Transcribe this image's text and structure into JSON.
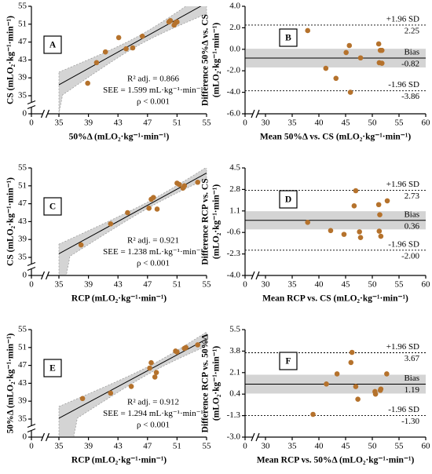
{
  "chart_data": [
    {
      "type": "scatter",
      "panel": "A",
      "xlabel": "50%Δ (mLO₂·kg⁻¹·min⁻¹)",
      "ylabel": [
        "CS (mLO₂·kg⁻¹·min⁻¹)"
      ],
      "x": [
        38.9,
        40.1,
        41.3,
        43.1,
        44.1,
        45.0,
        46.3,
        49.9,
        50.1,
        50.6,
        50.8,
        51.0
      ],
      "values": [
        37.8,
        42.4,
        44.8,
        48.0,
        45.5,
        45.7,
        48.3,
        51.5,
        51.8,
        50.8,
        51.3,
        51.5
      ],
      "color": "#b5722c",
      "xlim": [
        35,
        55
      ],
      "ylim": [
        35,
        55
      ],
      "x_break": true,
      "y_break": true,
      "xticks": [
        0,
        35,
        39,
        43,
        47,
        51,
        55
      ],
      "yticks": [
        0,
        35,
        39,
        43,
        47,
        51,
        55
      ],
      "regression": true,
      "annotations": [
        "R² adj. = 0.866",
        "SEE = 1.599 mL·kg⁻¹·min⁻¹",
        "ρ < 0.001"
      ]
    },
    {
      "type": "bland-altman",
      "panel": "B",
      "xlabel": "Mean 50%Δ vs. CS (mLO₂·kg⁻¹·min⁻¹)",
      "ylabel": [
        "Difference 50%Δ vs. CS",
        "(mLO₂·kg⁻¹·min⁻¹)"
      ],
      "x": [
        37.9,
        41.3,
        43.2,
        45.1,
        45.7,
        45.9,
        47.8,
        51.2,
        51.5,
        51.8,
        51.3,
        51.8
      ],
      "values": [
        1.74,
        -1.77,
        -2.7,
        -0.3,
        0.35,
        -4.0,
        -0.8,
        0.5,
        -0.1,
        -0.1,
        -1.25,
        -1.3
      ],
      "color": "#b5722c",
      "xlim": [
        30,
        60
      ],
      "ylim": [
        -6,
        4
      ],
      "x_break": true,
      "y_break": false,
      "xticks": [
        0,
        30,
        35,
        40,
        45,
        50,
        55,
        60
      ],
      "yticks": [
        {
          "value": -6,
          "label": "-6.0"
        },
        {
          "value": -4,
          "label": "-4.0"
        },
        {
          "value": -2,
          "label": "-2.0"
        },
        {
          "value": 0,
          "label": "0.0"
        },
        {
          "value": 2,
          "label": "2.0"
        },
        {
          "value": 4,
          "label": "4.0"
        }
      ],
      "limits": [
        {
          "name": "+1.96 SD",
          "value": 2.25,
          "style": "dashed"
        },
        {
          "name": "Bias",
          "value": -0.82,
          "style": "solid"
        },
        {
          "name": "-1.96 SD",
          "value": -3.86,
          "style": "dashed"
        }
      ]
    },
    {
      "type": "scatter",
      "panel": "C",
      "xlabel": "RCP (mLO₂·kg⁻¹·min⁻¹)",
      "ylabel": [
        "CS (mLO₂·kg⁻¹·min⁻¹)"
      ],
      "x": [
        38.0,
        42.0,
        44.3,
        47.2,
        47.5,
        47.8,
        48.3,
        51.0,
        51.3,
        51.8,
        52.0,
        53.8
      ],
      "values": [
        37.8,
        42.5,
        45.0,
        46.0,
        48.0,
        48.4,
        45.8,
        51.6,
        51.3,
        50.5,
        51.0,
        51.8
      ],
      "color": "#b5722c",
      "xlim": [
        35,
        55
      ],
      "ylim": [
        35,
        55
      ],
      "x_break": true,
      "y_break": true,
      "xticks": [
        0,
        35,
        39,
        43,
        47,
        51,
        55
      ],
      "yticks": [
        0,
        35,
        39,
        43,
        47,
        51,
        55
      ],
      "regression": true,
      "annotations": [
        "R² adj. = 0.921",
        "SEE = 1.238 mL·kg⁻¹·min⁻¹",
        "ρ < 0.001"
      ]
    },
    {
      "type": "bland-altman",
      "panel": "D",
      "xlabel": "Mean RCP vs. CS (mLO₂·kg⁻¹·min⁻¹)",
      "ylabel": [
        "Difference RCP vs. CS",
        "(mLO₂·kg⁻¹·min⁻¹)"
      ],
      "x": [
        37.9,
        42.2,
        44.7,
        46.6,
        46.9,
        47.6,
        47.8,
        51.2,
        51.4,
        51.3,
        51.6,
        52.8
      ],
      "values": [
        0.2,
        -0.45,
        -0.75,
        1.5,
        2.7,
        -0.55,
        -1.0,
        1.6,
        0.8,
        -0.5,
        -0.9,
        1.9
      ],
      "color": "#b5722c",
      "xlim": [
        30,
        60
      ],
      "ylim": [
        -4,
        4.5
      ],
      "x_break": true,
      "y_break": false,
      "xticks": [
        0,
        30,
        35,
        40,
        45,
        50,
        55,
        60
      ],
      "yticks": [
        {
          "value": -4,
          "label": "-4.0"
        },
        -2.3,
        -0.6,
        1.1,
        2.8,
        4.5
      ],
      "limits": [
        {
          "name": "+1.96 SD",
          "value": 2.73,
          "style": "dashed"
        },
        {
          "name": "Bias",
          "value": 0.36,
          "style": "solid"
        },
        {
          "name": "-1.96 SD",
          "value": -2,
          "value_label": "-2.00",
          "style": "dashed"
        }
      ]
    },
    {
      "type": "scatter",
      "panel": "E",
      "xlabel": "RCP (mLO₂·kg⁻¹·min⁻¹)",
      "ylabel": [
        "50%Δ (mLO₂·kg⁻¹·min⁻¹)"
      ],
      "x": [
        38.2,
        42.0,
        44.8,
        47.3,
        47.5,
        48.0,
        48.2,
        50.8,
        51.0,
        52.0,
        52.2,
        53.8
      ],
      "values": [
        39.6,
        40.8,
        42.3,
        46.4,
        47.6,
        44.4,
        45.4,
        50.2,
        50.0,
        50.8,
        51.0,
        51.6
      ],
      "color": "#b5722c",
      "xlim": [
        35,
        55
      ],
      "ylim": [
        35,
        55
      ],
      "x_break": true,
      "y_break": true,
      "xticks": [
        0,
        35,
        39,
        43,
        47,
        51,
        55
      ],
      "yticks": [
        0,
        35,
        39,
        43,
        47,
        51,
        55
      ],
      "regression": true,
      "annotations": [
        "R² adj. = 0.912",
        "SEE = 1.294 mL·kg⁻¹·min⁻¹",
        "ρ < 0.001"
      ]
    },
    {
      "type": "bland-altman",
      "panel": "F",
      "xlabel": "Mean RCP vs. 50%Δ (mLO₂·kg⁻¹·min⁻¹)",
      "ylabel": [
        "Difference RCP vs. 50%Δ",
        "(mLO₂·kg⁻¹·min⁻¹)"
      ],
      "x": [
        38.9,
        41.4,
        43.4,
        46.2,
        46.9,
        47.3,
        50.5,
        50.6,
        51.5,
        51.6,
        52.7,
        46.0
      ],
      "values": [
        -1.2,
        1.2,
        2.0,
        3.7,
        1.0,
        0.0,
        0.6,
        0.4,
        0.7,
        0.8,
        2.0,
        2.9
      ],
      "color": "#b5722c",
      "xlim": [
        30,
        60
      ],
      "ylim": [
        -3,
        5.5
      ],
      "x_break": true,
      "y_break": false,
      "xticks": [
        0,
        30,
        35,
        40,
        45,
        50,
        55,
        60
      ],
      "yticks": [
        {
          "value": -3,
          "label": "-3.0"
        },
        -1.3,
        0.4,
        2.1,
        3.8,
        5.5
      ],
      "limits": [
        {
          "name": "+1.96 SD",
          "value": 3.67,
          "style": "dashed"
        },
        {
          "name": "Bias",
          "value": 1.19,
          "style": "solid"
        },
        {
          "name": "-1.96 SD",
          "value": -1.3,
          "value_label": "-1.30",
          "style": "dashed"
        }
      ]
    }
  ]
}
